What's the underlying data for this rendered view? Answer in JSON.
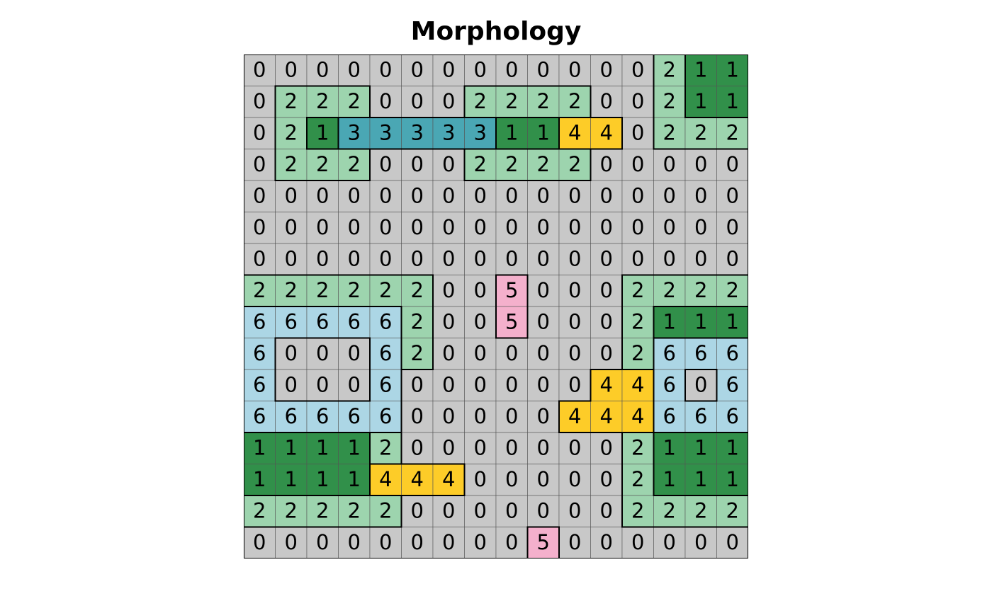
{
  "title": "Morphology",
  "colors": {
    "0": "#c8c8c8",
    "1": "#31904a",
    "2": "#9dd4ae",
    "3": "#4aa7b4",
    "4": "#fdcc28",
    "5": "#f4b0cc",
    "6": "#acd6e5"
  },
  "grid": [
    [
      0,
      0,
      0,
      0,
      0,
      0,
      0,
      0,
      0,
      0,
      0,
      0,
      0,
      2,
      1,
      1
    ],
    [
      0,
      2,
      2,
      2,
      0,
      0,
      0,
      2,
      2,
      2,
      2,
      0,
      0,
      2,
      1,
      1
    ],
    [
      0,
      2,
      1,
      3,
      3,
      3,
      3,
      3,
      1,
      1,
      4,
      4,
      0,
      2,
      2,
      2
    ],
    [
      0,
      2,
      2,
      2,
      0,
      0,
      0,
      2,
      2,
      2,
      2,
      0,
      0,
      0,
      0,
      0
    ],
    [
      0,
      0,
      0,
      0,
      0,
      0,
      0,
      0,
      0,
      0,
      0,
      0,
      0,
      0,
      0,
      0
    ],
    [
      0,
      0,
      0,
      0,
      0,
      0,
      0,
      0,
      0,
      0,
      0,
      0,
      0,
      0,
      0,
      0
    ],
    [
      0,
      0,
      0,
      0,
      0,
      0,
      0,
      0,
      0,
      0,
      0,
      0,
      0,
      0,
      0,
      0
    ],
    [
      2,
      2,
      2,
      2,
      2,
      2,
      0,
      0,
      5,
      0,
      0,
      0,
      2,
      2,
      2,
      2
    ],
    [
      6,
      6,
      6,
      6,
      6,
      2,
      0,
      0,
      5,
      0,
      0,
      0,
      2,
      1,
      1,
      1
    ],
    [
      6,
      0,
      0,
      0,
      6,
      2,
      0,
      0,
      0,
      0,
      0,
      0,
      2,
      6,
      6,
      6
    ],
    [
      6,
      0,
      0,
      0,
      6,
      0,
      0,
      0,
      0,
      0,
      0,
      4,
      4,
      6,
      0,
      6
    ],
    [
      6,
      6,
      6,
      6,
      6,
      0,
      0,
      0,
      0,
      0,
      4,
      4,
      4,
      6,
      6,
      6
    ],
    [
      1,
      1,
      1,
      1,
      2,
      0,
      0,
      0,
      0,
      0,
      0,
      0,
      2,
      1,
      1,
      1
    ],
    [
      1,
      1,
      1,
      1,
      4,
      4,
      4,
      0,
      0,
      0,
      0,
      0,
      2,
      1,
      1,
      1
    ],
    [
      2,
      2,
      2,
      2,
      2,
      0,
      0,
      0,
      0,
      0,
      0,
      0,
      2,
      2,
      2,
      2
    ],
    [
      0,
      0,
      0,
      0,
      0,
      0,
      0,
      0,
      0,
      5,
      0,
      0,
      0,
      0,
      0,
      0
    ]
  ]
}
